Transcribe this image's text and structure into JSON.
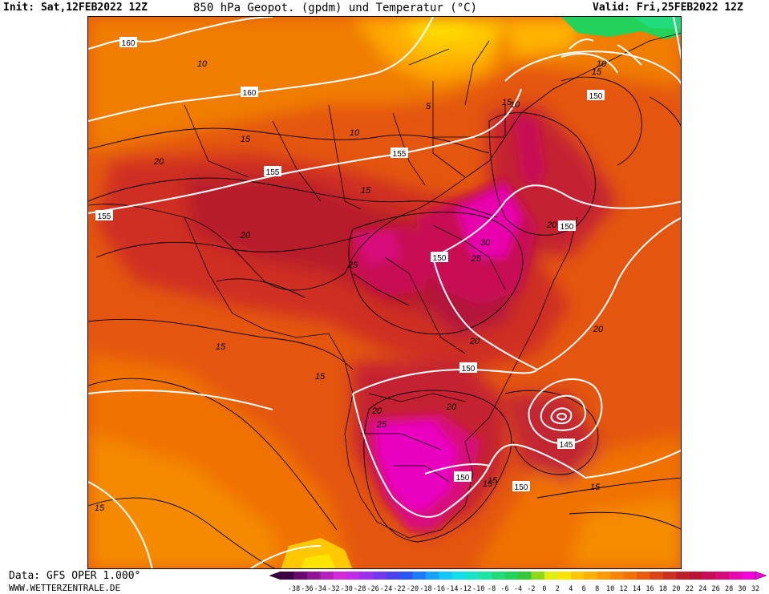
{
  "header": {
    "init": "Init: Sat,12FEB2022 12Z",
    "title": "850 hPa Geopot. (gpdm) und Temperatur (°C)",
    "valid": "Valid: Fri,25FEB2022 12Z"
  },
  "footer": {
    "data_source": "Data: GFS OPER 1.000°",
    "website": "WWW.WETTERZENTRALE.DE"
  },
  "geopotential_labels": [
    "160",
    "160",
    "155",
    "155",
    "155",
    "155",
    "150",
    "150",
    "150",
    "150",
    "150",
    "150",
    "150",
    "145"
  ],
  "temperature_labels": [
    "10",
    "10",
    "15",
    "15",
    "15",
    "15",
    "15",
    "15",
    "15",
    "20",
    "20",
    "20",
    "20",
    "20",
    "20",
    "20",
    "25",
    "25",
    "25",
    "30",
    "5",
    "10",
    "10",
    "15",
    "15",
    "15"
  ],
  "colorbar": {
    "ticks": [
      "-38",
      "-36",
      "-34",
      "-32",
      "-30",
      "-28",
      "-26",
      "-24",
      "-22",
      "-20",
      "-18",
      "-16",
      "-14",
      "-12",
      "-10",
      "-8",
      "-6",
      "-4",
      "-2",
      "0",
      "2",
      "4",
      "6",
      "8",
      "10",
      "12",
      "14",
      "16",
      "18",
      "20",
      "22",
      "24",
      "26",
      "28",
      "30",
      "32"
    ],
    "colors": [
      "#3d0040",
      "#6a0a6e",
      "#8e1495",
      "#b61fbb",
      "#d42ad9",
      "#c229e8",
      "#9a2ff0",
      "#7337f0",
      "#4c40f0",
      "#2c55f5",
      "#1e7bff",
      "#15a3ff",
      "#10c8ff",
      "#14ddea",
      "#18e3c8",
      "#1de3a3",
      "#20dc7c",
      "#22d25a",
      "#34c83a",
      "#8ed81a",
      "#dfee10",
      "#fbe500",
      "#ffc800",
      "#ffb000",
      "#ff9a00",
      "#fb8500",
      "#f47000",
      "#ea5a0a",
      "#dc4418",
      "#cd3020",
      "#bd1f28",
      "#bb1238",
      "#c80c55",
      "#d8097a",
      "#e806ad",
      "#f004d6"
    ]
  }
}
